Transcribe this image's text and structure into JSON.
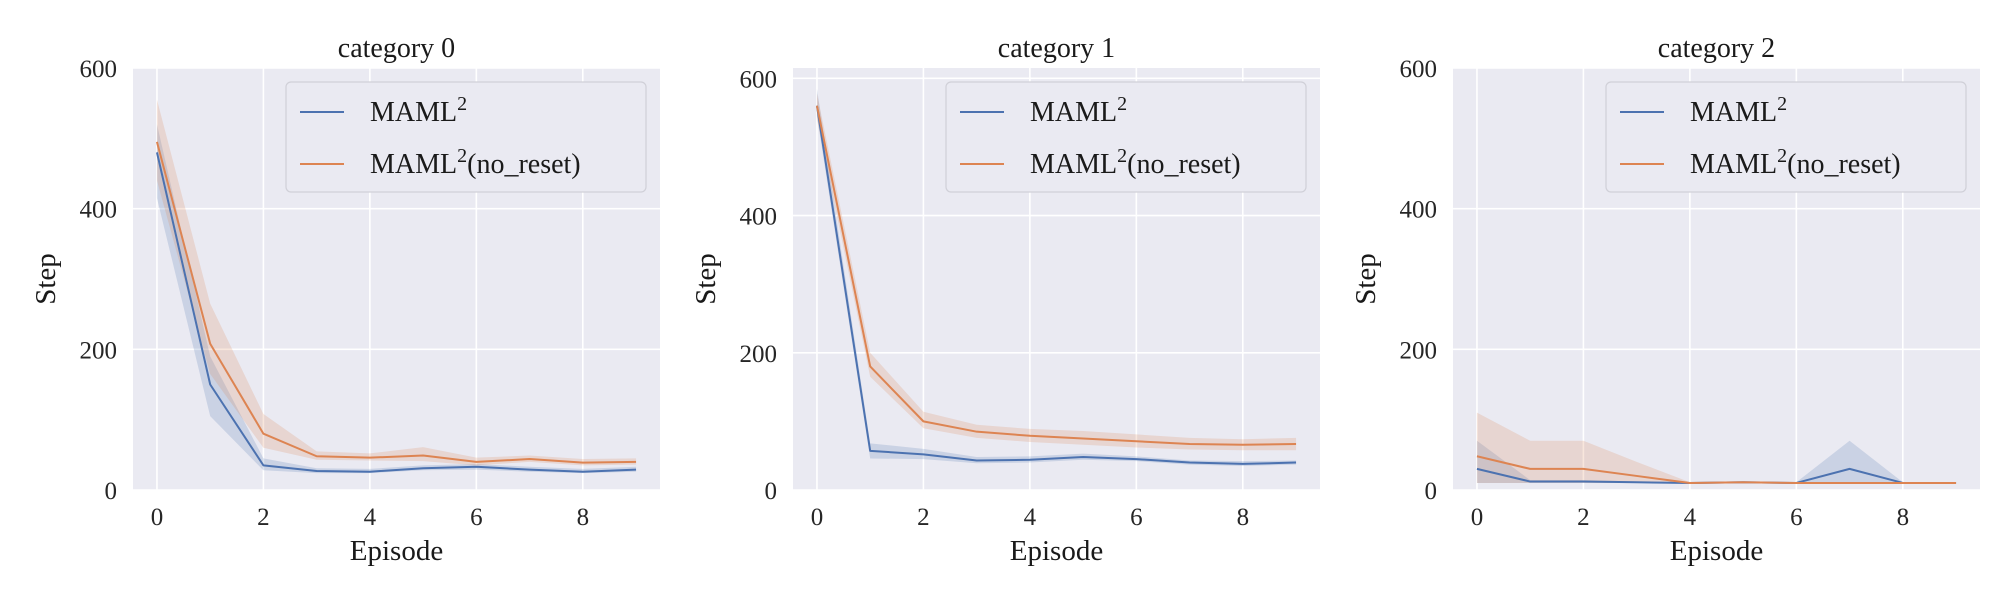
{
  "chart_data": [
    {
      "type": "line",
      "title": "category 0",
      "xlabel": "Episode",
      "ylabel": "Step",
      "xlim": [
        -0.45,
        9.45
      ],
      "ylim": [
        0,
        600
      ],
      "xticks": [
        0,
        2,
        4,
        6,
        8
      ],
      "yticks": [
        0,
        200,
        400,
        600
      ],
      "grid": true,
      "legend_position": "top-right",
      "x": [
        0,
        1,
        2,
        3,
        4,
        5,
        6,
        7,
        8,
        9
      ],
      "series": [
        {
          "name": "MAML",
          "name_sup": "2",
          "name_suffix": "",
          "color": "#4c72b0",
          "values": [
            480,
            150,
            35,
            27,
            26,
            31,
            33,
            29,
            26,
            29
          ],
          "lower": [
            415,
            105,
            28,
            24,
            24,
            28,
            29,
            26,
            24,
            26
          ],
          "upper": [
            520,
            190,
            45,
            31,
            30,
            35,
            37,
            33,
            30,
            33
          ]
        },
        {
          "name": "MAML",
          "name_sup": "2",
          "name_suffix": "(no_reset)",
          "color": "#dd8452",
          "values": [
            495,
            208,
            80,
            48,
            46,
            49,
            40,
            44,
            39,
            40
          ],
          "lower": [
            440,
            165,
            60,
            43,
            42,
            41,
            35,
            40,
            35,
            36
          ],
          "upper": [
            555,
            265,
            108,
            55,
            52,
            61,
            46,
            49,
            44,
            45
          ]
        }
      ]
    },
    {
      "type": "line",
      "title": "category 1",
      "xlabel": "Episode",
      "ylabel": "Step",
      "xlim": [
        -0.45,
        9.45
      ],
      "ylim": [
        0,
        615
      ],
      "xticks": [
        0,
        2,
        4,
        6,
        8
      ],
      "yticks": [
        0,
        200,
        400,
        600
      ],
      "grid": true,
      "legend_position": "top-right",
      "x": [
        0,
        1,
        2,
        3,
        4,
        5,
        6,
        7,
        8,
        9
      ],
      "series": [
        {
          "name": "MAML",
          "name_sup": "2",
          "name_suffix": "",
          "color": "#4c72b0",
          "values": [
            560,
            57,
            52,
            43,
            44,
            48,
            45,
            40,
            38,
            40
          ],
          "lower": [
            545,
            46,
            45,
            39,
            40,
            44,
            42,
            37,
            35,
            37
          ],
          "upper": [
            585,
            68,
            60,
            48,
            49,
            53,
            49,
            43,
            42,
            43
          ]
        },
        {
          "name": "MAML",
          "name_sup": "2",
          "name_suffix": "(no_reset)",
          "color": "#dd8452",
          "values": [
            560,
            180,
            100,
            85,
            79,
            75,
            71,
            67,
            66,
            67
          ],
          "lower": [
            540,
            165,
            90,
            76,
            70,
            66,
            62,
            59,
            58,
            58
          ],
          "upper": [
            578,
            200,
            114,
            95,
            89,
            86,
            81,
            76,
            74,
            76
          ]
        }
      ]
    },
    {
      "type": "line",
      "title": "category 2",
      "xlabel": "Episode",
      "ylabel": "Step",
      "xlim": [
        -0.45,
        9.45
      ],
      "ylim": [
        0,
        600
      ],
      "xticks": [
        0,
        2,
        4,
        6,
        8
      ],
      "yticks": [
        0,
        200,
        400,
        600
      ],
      "grid": true,
      "legend_position": "top-right",
      "x": [
        0,
        1,
        2,
        3,
        4,
        5,
        6,
        7,
        8,
        9
      ],
      "series": [
        {
          "name": "MAML",
          "name_sup": "2",
          "name_suffix": "",
          "color": "#4c72b0",
          "values": [
            30,
            12,
            12,
            11,
            10,
            11,
            10,
            30,
            10,
            10
          ],
          "lower": [
            10,
            10,
            10,
            10,
            10,
            10,
            10,
            10,
            10,
            10
          ],
          "upper": [
            70,
            14,
            14,
            12,
            11,
            12,
            11,
            70,
            11,
            11
          ]
        },
        {
          "name": "MAML",
          "name_sup": "2",
          "name_suffix": "(no_reset)",
          "color": "#dd8452",
          "values": [
            48,
            30,
            30,
            20,
            10,
            11,
            10,
            10,
            10,
            10
          ],
          "lower": [
            10,
            10,
            10,
            10,
            10,
            10,
            10,
            10,
            10,
            10
          ],
          "upper": [
            110,
            70,
            70,
            40,
            11,
            12,
            11,
            11,
            11,
            11
          ]
        }
      ]
    }
  ]
}
